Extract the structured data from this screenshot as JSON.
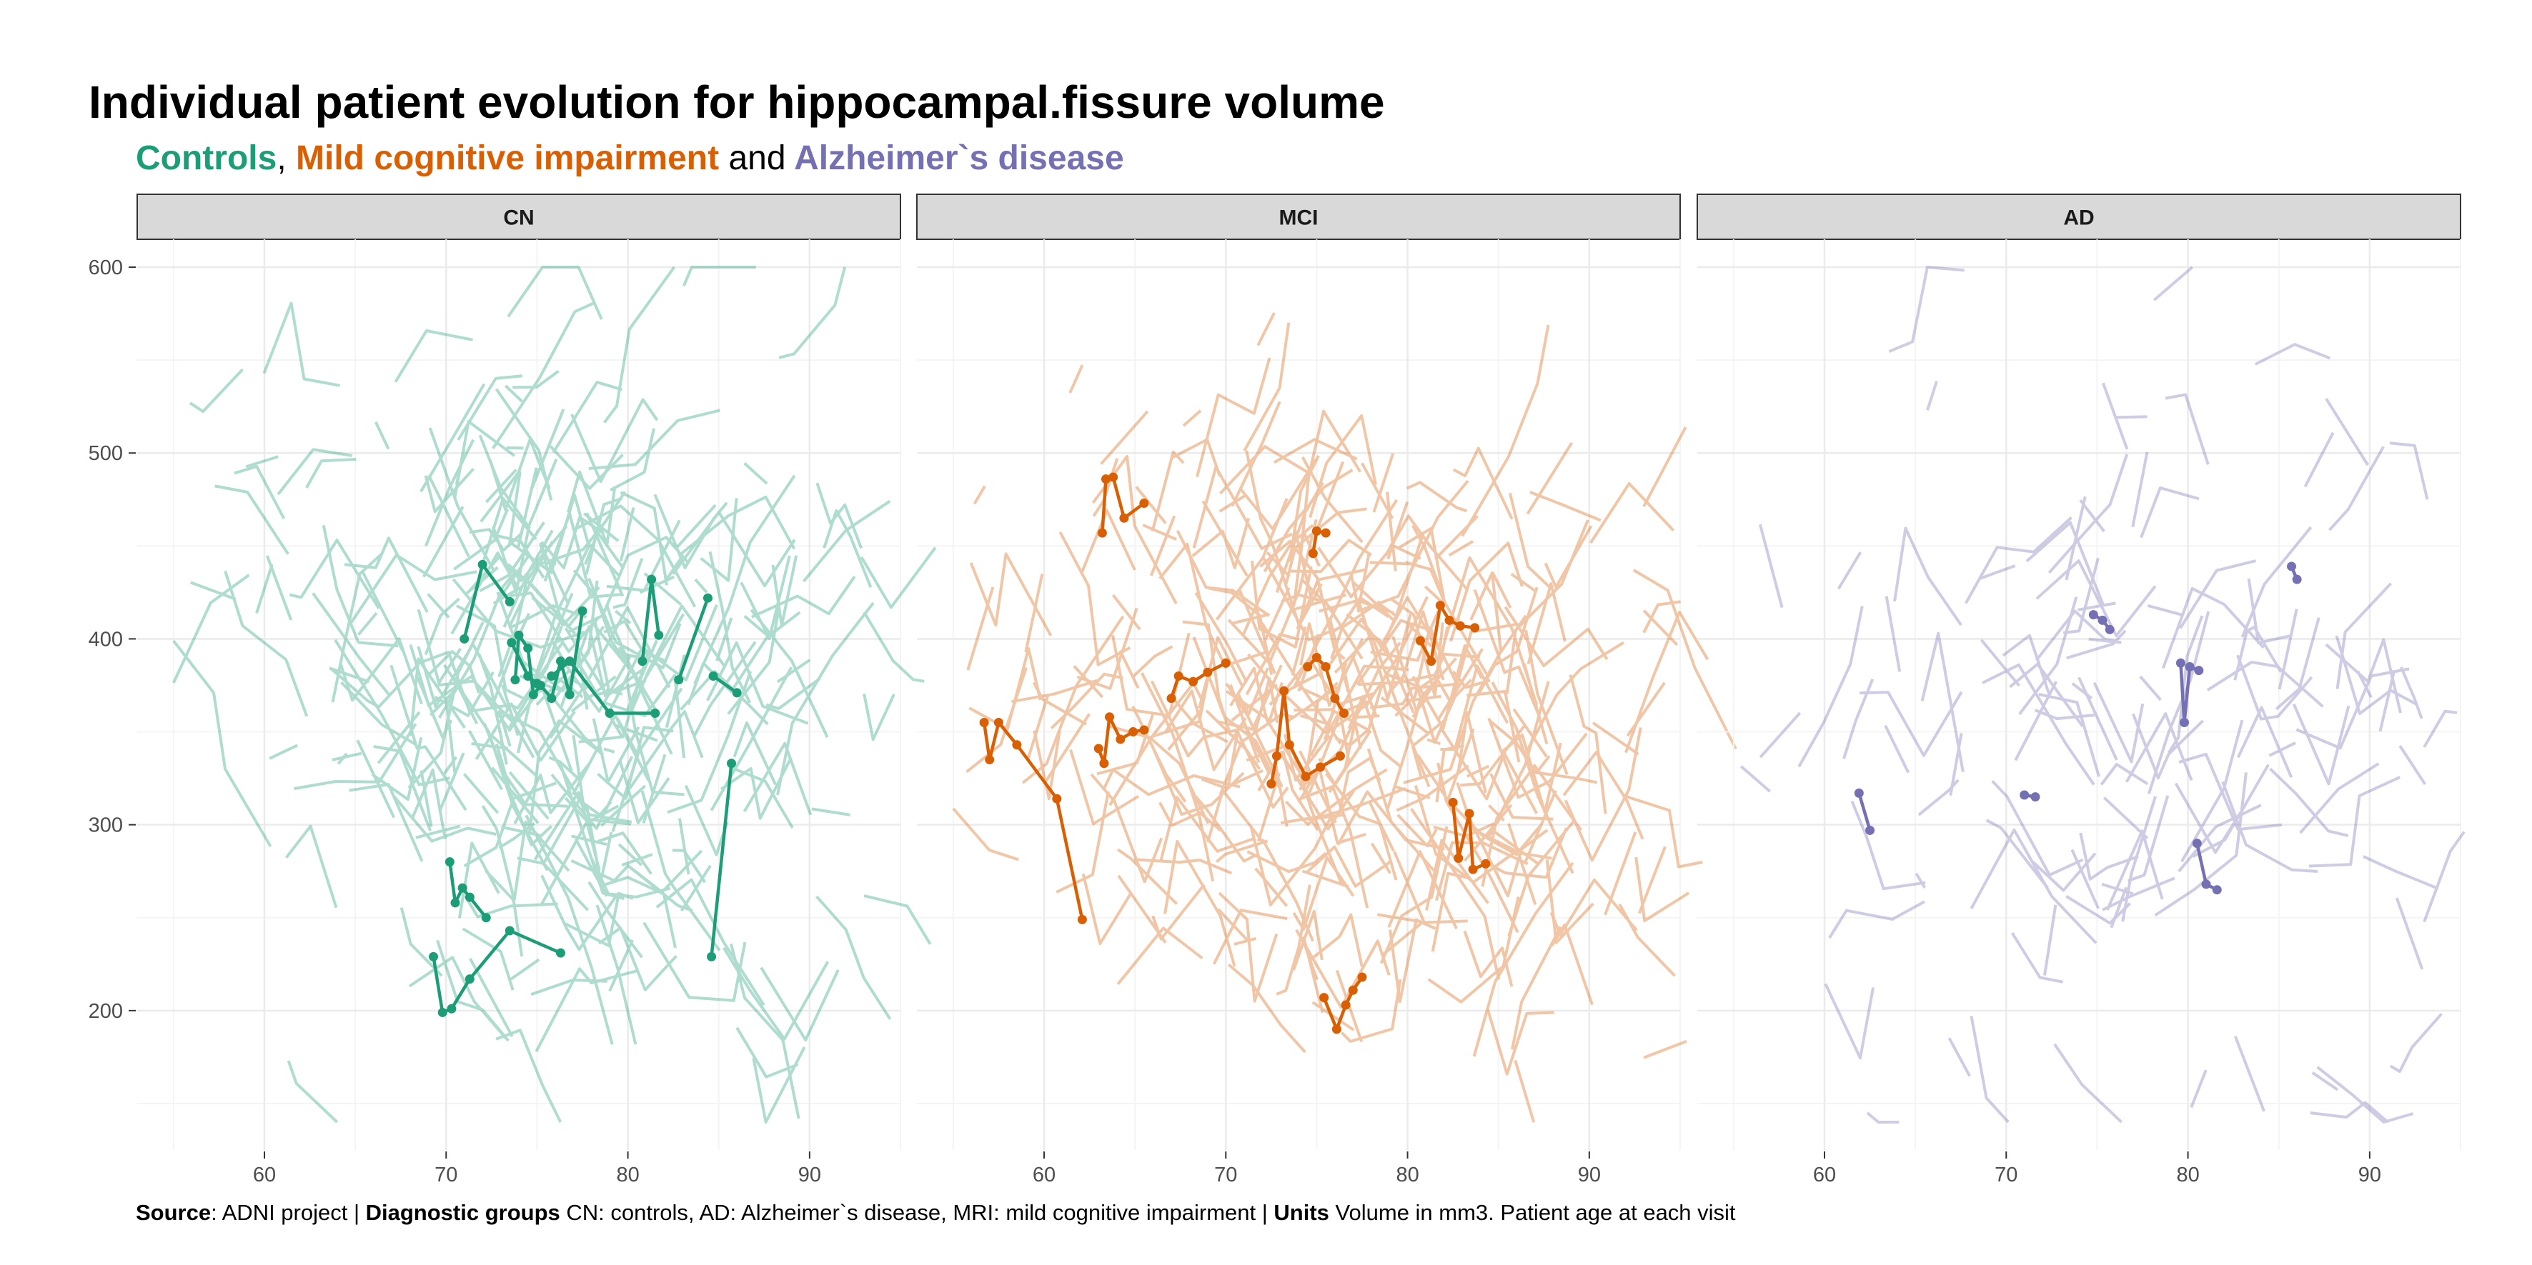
{
  "title": "Individual patient evolution for hippocampal.fissure volume",
  "subtitle": {
    "controls": "Controls",
    "sep1": ",",
    "mci": "Mild cognitive impairment",
    "and": "and",
    "ad": "Alzheimer`s disease"
  },
  "caption": {
    "source_label": "Source",
    "source_text": ": ADNI project | ",
    "groups_label": "Diagnostic groups",
    "groups_text": " CN: controls, AD: Alzheimer`s disease, MRI: mild cognitive impairment | ",
    "units_label": "Units",
    "units_text": " Volume in mm3. Patient age at each visit"
  },
  "colors": {
    "CN": "#1b9e77",
    "MCI": "#d95f02",
    "AD": "#7570b3",
    "strip_fill": "#d9d9d9",
    "grid_major": "#ebebeb",
    "grid_minor": "#f4f4f4"
  },
  "chart_data": {
    "type": "line",
    "xlim": [
      53,
      95
    ],
    "ylim": [
      125,
      615
    ],
    "x_ticks": [
      60,
      70,
      80,
      90
    ],
    "y_ticks": [
      200,
      300,
      400,
      500,
      600
    ],
    "grid": true,
    "legend": "none",
    "panels": [
      {
        "name": "CN",
        "color": "#1b9e77",
        "highlight": [
          [
            [
              71.0,
              400
            ],
            [
              72.0,
              440
            ],
            [
              73.5,
              420
            ]
          ],
          [
            [
              73.8,
              378
            ],
            [
              74.0,
              402
            ],
            [
              74.5,
              395
            ],
            [
              74.8,
              370
            ],
            [
              75.2,
              375
            ],
            [
              75.8,
              368
            ],
            [
              76.3,
              388
            ],
            [
              76.8,
              370
            ],
            [
              77.5,
              415
            ]
          ],
          [
            [
              73.6,
              398
            ],
            [
              74.5,
              380
            ],
            [
              75.0,
              376
            ]
          ],
          [
            [
              75.8,
              380
            ],
            [
              76.8,
              388
            ],
            [
              79.0,
              360
            ],
            [
              81.5,
              360
            ]
          ],
          [
            [
              80.8,
              388
            ],
            [
              81.3,
              432
            ],
            [
              81.7,
              402
            ]
          ],
          [
            [
              82.8,
              378
            ],
            [
              84.4,
              422
            ]
          ],
          [
            [
              84.7,
              380
            ],
            [
              86.0,
              371
            ]
          ],
          [
            [
              70.2,
              280
            ],
            [
              70.5,
              258
            ],
            [
              70.9,
              266
            ],
            [
              71.3,
              261
            ],
            [
              72.2,
              250
            ]
          ],
          [
            [
              69.3,
              229
            ],
            [
              69.8,
              199
            ],
            [
              70.3,
              201
            ],
            [
              71.3,
              217
            ],
            [
              73.5,
              243
            ],
            [
              76.3,
              231
            ]
          ],
          [
            [
              84.6,
              229
            ],
            [
              85.7,
              333
            ]
          ]
        ],
        "background_seed": 101,
        "background_count": 300,
        "background_center": [
          74.5,
          380
        ],
        "background_spread": [
          7.2,
          75
        ]
      },
      {
        "name": "MCI",
        "color": "#d95f02",
        "highlight": [
          [
            [
              63.2,
              457
            ],
            [
              63.4,
              486
            ],
            [
              63.8,
              487
            ],
            [
              64.4,
              465
            ],
            [
              65.5,
              473
            ]
          ],
          [
            [
              56.7,
              355
            ],
            [
              57.0,
              335
            ],
            [
              57.5,
              355
            ],
            [
              58.5,
              343
            ],
            [
              60.7,
              314
            ],
            [
              62.1,
              249
            ]
          ],
          [
            [
              63.0,
              341
            ],
            [
              63.3,
              333
            ],
            [
              63.6,
              358
            ],
            [
              64.2,
              346
            ],
            [
              64.9,
              350
            ],
            [
              65.5,
              351
            ]
          ],
          [
            [
              67.0,
              368
            ],
            [
              67.4,
              380
            ],
            [
              68.2,
              377
            ],
            [
              69.0,
              382
            ],
            [
              70.0,
              387
            ]
          ],
          [
            [
              72.5,
              322
            ],
            [
              72.8,
              337
            ],
            [
              73.2,
              372
            ],
            [
              73.5,
              343
            ],
            [
              74.4,
              326
            ],
            [
              75.2,
              331
            ],
            [
              76.3,
              337
            ]
          ],
          [
            [
              74.5,
              385
            ],
            [
              75.0,
              390
            ],
            [
              75.5,
              385
            ],
            [
              76.0,
              368
            ],
            [
              76.5,
              360
            ]
          ],
          [
            [
              74.8,
              446
            ],
            [
              75.0,
              458
            ],
            [
              75.5,
              457
            ]
          ],
          [
            [
              80.7,
              399
            ],
            [
              81.3,
              388
            ],
            [
              81.8,
              418
            ],
            [
              82.3,
              410
            ],
            [
              82.9,
              407
            ],
            [
              83.7,
              406
            ]
          ],
          [
            [
              82.5,
              312
            ],
            [
              82.8,
              282
            ],
            [
              83.4,
              306
            ],
            [
              83.6,
              276
            ],
            [
              84.3,
              279
            ]
          ],
          [
            [
              75.4,
              207
            ],
            [
              76.1,
              190
            ],
            [
              76.6,
              203
            ],
            [
              77.0,
              211
            ],
            [
              77.5,
              218
            ]
          ]
        ],
        "background_seed": 202,
        "background_count": 330,
        "background_center": [
          75,
          365
        ],
        "background_spread": [
          7.8,
          78
        ]
      },
      {
        "name": "AD",
        "color": "#7570b3",
        "highlight": [
          [
            [
              61.9,
              317
            ],
            [
              62.5,
              297
            ]
          ],
          [
            [
              71.0,
              316
            ],
            [
              71.6,
              315
            ]
          ],
          [
            [
              74.8,
              413
            ],
            [
              75.3,
              410
            ],
            [
              75.7,
              405
            ]
          ],
          [
            [
              79.6,
              387
            ],
            [
              79.8,
              355
            ],
            [
              80.1,
              385
            ],
            [
              80.6,
              383
            ]
          ],
          [
            [
              80.5,
              290
            ],
            [
              81.0,
              268
            ],
            [
              81.6,
              265
            ]
          ],
          [
            [
              85.7,
              439
            ],
            [
              86.0,
              432
            ]
          ]
        ],
        "background_seed": 303,
        "background_count": 120,
        "background_center": [
          76,
          360
        ],
        "background_spread": [
          9.0,
          85
        ]
      }
    ]
  }
}
